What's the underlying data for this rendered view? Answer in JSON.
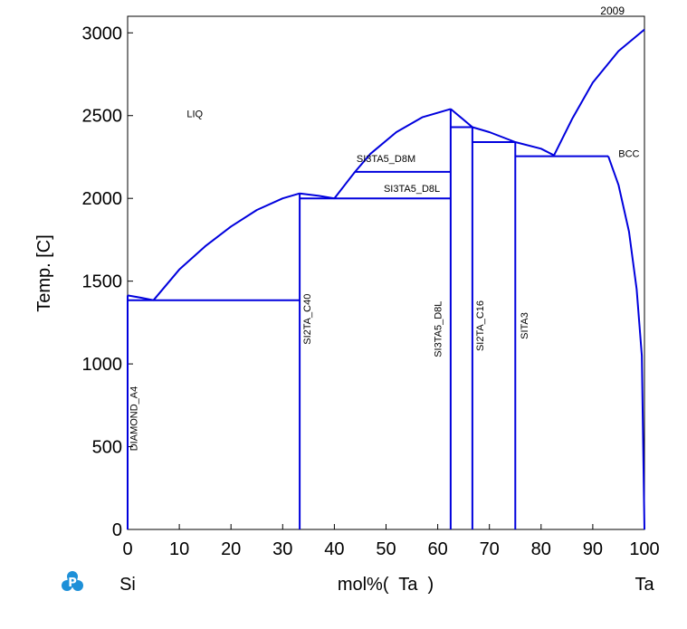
{
  "chart_data": {
    "type": "phase-diagram",
    "year_label": "2009",
    "xlabel": "mol%(  Ta  )",
    "ylabel": "Temp.  [C]",
    "left_element": "Si",
    "right_element": "Ta",
    "xlim": [
      0,
      100
    ],
    "ylim": [
      0,
      3100
    ],
    "xticks": [
      0,
      10,
      20,
      30,
      40,
      50,
      60,
      70,
      80,
      90,
      100
    ],
    "yticks": [
      0,
      500,
      1000,
      1500,
      2000,
      2500,
      3000
    ],
    "line_color": "#0000dd",
    "phase_labels": [
      {
        "text": "LIQ",
        "x": 13,
        "y": 2490,
        "rotate": false
      },
      {
        "text": "SI3TA5_D8M",
        "x": 50,
        "y": 2220,
        "rotate": false
      },
      {
        "text": "SI3TA5_D8L",
        "x": 55,
        "y": 2040,
        "rotate": false
      },
      {
        "text": "BCC",
        "x": 97,
        "y": 2250,
        "rotate": false
      },
      {
        "text": "DIAMOND_A4",
        "x": 1.8,
        "y": 670,
        "rotate": true
      },
      {
        "text": "SI2TA_C40",
        "x": 35.4,
        "y": 1270,
        "rotate": true
      },
      {
        "text": "SI3TA5_D8L",
        "x": 60.7,
        "y": 1210,
        "rotate": true
      },
      {
        "text": "SI2TA_C16",
        "x": 68.8,
        "y": 1230,
        "rotate": true
      },
      {
        "text": "SITA3",
        "x": 77.4,
        "y": 1230,
        "rotate": true
      }
    ],
    "boundaries": [
      {
        "name": "si-liquidus",
        "points": [
          [
            0,
            1414
          ],
          [
            2.5,
            1400
          ],
          [
            5,
            1385
          ]
        ]
      },
      {
        "name": "liquidus-si2ta",
        "points": [
          [
            5,
            1385
          ],
          [
            10,
            1570
          ],
          [
            15,
            1710
          ],
          [
            20,
            1830
          ],
          [
            25,
            1930
          ],
          [
            30,
            2000
          ],
          [
            33.3,
            2030
          ]
        ]
      },
      {
        "name": "liquidus-si2ta-right",
        "points": [
          [
            33.3,
            2030
          ],
          [
            37,
            2015
          ],
          [
            40,
            2000
          ]
        ]
      },
      {
        "name": "liquidus-si3ta5",
        "points": [
          [
            40,
            2000
          ],
          [
            44,
            2160
          ],
          [
            47,
            2270
          ],
          [
            52,
            2400
          ],
          [
            57,
            2490
          ],
          [
            62.5,
            2540
          ]
        ]
      },
      {
        "name": "liquidus-si3ta5-right",
        "points": [
          [
            62.5,
            2540
          ],
          [
            66.7,
            2430
          ]
        ]
      },
      {
        "name": "liquidus-si2ta-c16",
        "points": [
          [
            66.7,
            2430
          ],
          [
            70,
            2400
          ],
          [
            75,
            2340
          ]
        ]
      },
      {
        "name": "liquidus-sita3",
        "points": [
          [
            75,
            2340
          ],
          [
            80,
            2300
          ],
          [
            82.5,
            2260
          ]
        ]
      },
      {
        "name": "liquidus-bcc",
        "points": [
          [
            82.5,
            2260
          ],
          [
            86,
            2480
          ],
          [
            90,
            2700
          ],
          [
            95,
            2890
          ],
          [
            100,
            3020
          ]
        ]
      },
      {
        "name": "bcc-solvus",
        "points": [
          [
            93,
            2255
          ],
          [
            95,
            2080
          ],
          [
            97,
            1800
          ],
          [
            98.5,
            1450
          ],
          [
            99.5,
            1050
          ],
          [
            100,
            0
          ]
        ]
      },
      {
        "name": "eutectic-si-si2ta",
        "points": [
          [
            0,
            1385
          ],
          [
            33.3,
            1385
          ]
        ]
      },
      {
        "name": "eutectic-si2ta-si3ta5",
        "points": [
          [
            33.3,
            2000
          ],
          [
            62.5,
            2000
          ]
        ]
      },
      {
        "name": "si3ta5-transition",
        "points": [
          [
            44,
            2160
          ],
          [
            62.5,
            2160
          ]
        ]
      },
      {
        "name": "peritectic-c16",
        "points": [
          [
            62.5,
            2430
          ],
          [
            66.7,
            2430
          ]
        ]
      },
      {
        "name": "peritectic-sita3",
        "points": [
          [
            66.7,
            2340
          ],
          [
            75,
            2340
          ]
        ]
      },
      {
        "name": "eutectic-sita3-bcc",
        "points": [
          [
            75,
            2255
          ],
          [
            93,
            2255
          ]
        ]
      },
      {
        "name": "si-axis",
        "points": [
          [
            0,
            0
          ],
          [
            0,
            1414
          ]
        ]
      },
      {
        "name": "si2ta-line",
        "points": [
          [
            33.3,
            0
          ],
          [
            33.3,
            2030
          ]
        ]
      },
      {
        "name": "si3ta5-line",
        "points": [
          [
            62.5,
            0
          ],
          [
            62.5,
            2540
          ]
        ]
      },
      {
        "name": "si2ta-c16-line",
        "points": [
          [
            66.7,
            0
          ],
          [
            66.7,
            2430
          ]
        ]
      },
      {
        "name": "sita3-line",
        "points": [
          [
            75,
            0
          ],
          [
            75,
            2340
          ]
        ]
      }
    ]
  }
}
